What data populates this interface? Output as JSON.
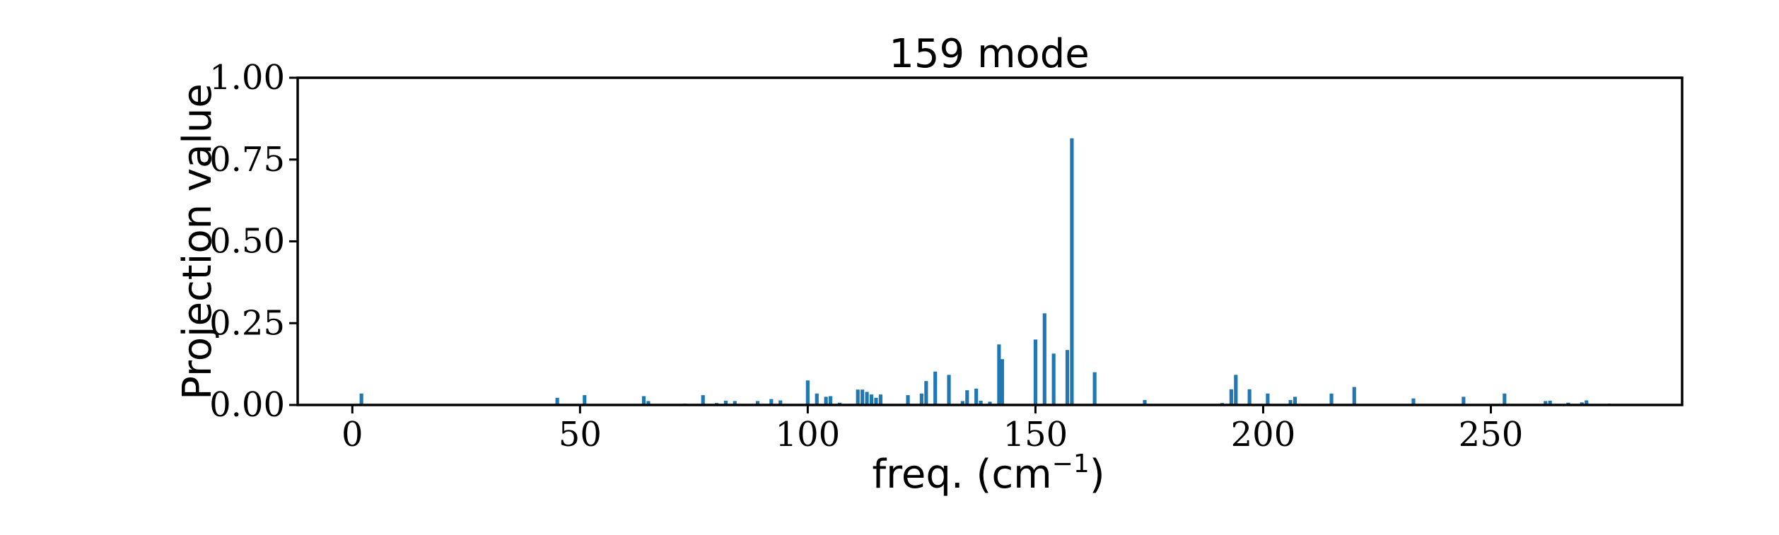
{
  "chart_data": {
    "type": "bar",
    "title": "159 mode",
    "xlabel": "freq. (cm",
    "xlabel_superscript": "−1",
    "xlabel_close": ")",
    "ylabel": "Projection value",
    "xlim": [
      -12,
      292
    ],
    "ylim": [
      0,
      1
    ],
    "xticks": [
      0,
      50,
      100,
      150,
      200,
      250
    ],
    "xtick_labels": [
      "0",
      "50",
      "100",
      "150",
      "200",
      "250"
    ],
    "yticks": [
      0,
      0.25,
      0.5,
      0.75,
      1.0
    ],
    "ytick_labels": [
      "0.00",
      "0.25",
      "0.50",
      "0.75",
      "1.00"
    ],
    "grid": false,
    "bar_color": "#1f77b4",
    "bar_width": 0.8,
    "x": [
      2,
      45,
      51,
      64,
      65,
      73,
      77,
      80,
      82,
      84,
      89,
      92,
      94,
      100,
      102,
      104,
      105,
      107,
      111,
      112,
      113,
      114,
      115,
      116,
      122,
      125,
      126,
      128,
      131,
      134,
      135,
      137,
      138,
      140,
      142,
      142.7,
      150,
      152,
      154,
      157,
      158,
      163,
      174,
      191,
      193,
      194,
      197,
      201,
      206,
      207,
      215,
      220,
      233,
      244,
      253,
      262,
      263,
      267,
      270,
      271,
      276
    ],
    "values": [
      0.035,
      0.022,
      0.03,
      0.027,
      0.012,
      0.004,
      0.03,
      0.006,
      0.013,
      0.012,
      0.012,
      0.018,
      0.014,
      0.075,
      0.035,
      0.025,
      0.027,
      0.007,
      0.047,
      0.047,
      0.04,
      0.032,
      0.022,
      0.032,
      0.03,
      0.035,
      0.073,
      0.102,
      0.092,
      0.012,
      0.045,
      0.05,
      0.013,
      0.01,
      0.185,
      0.14,
      0.2,
      0.28,
      0.157,
      0.168,
      0.815,
      0.1,
      0.015,
      0.006,
      0.048,
      0.092,
      0.048,
      0.035,
      0.015,
      0.025,
      0.035,
      0.055,
      0.02,
      0.025,
      0.035,
      0.012,
      0.013,
      0.007,
      0.008,
      0.014,
      0.004
    ]
  }
}
